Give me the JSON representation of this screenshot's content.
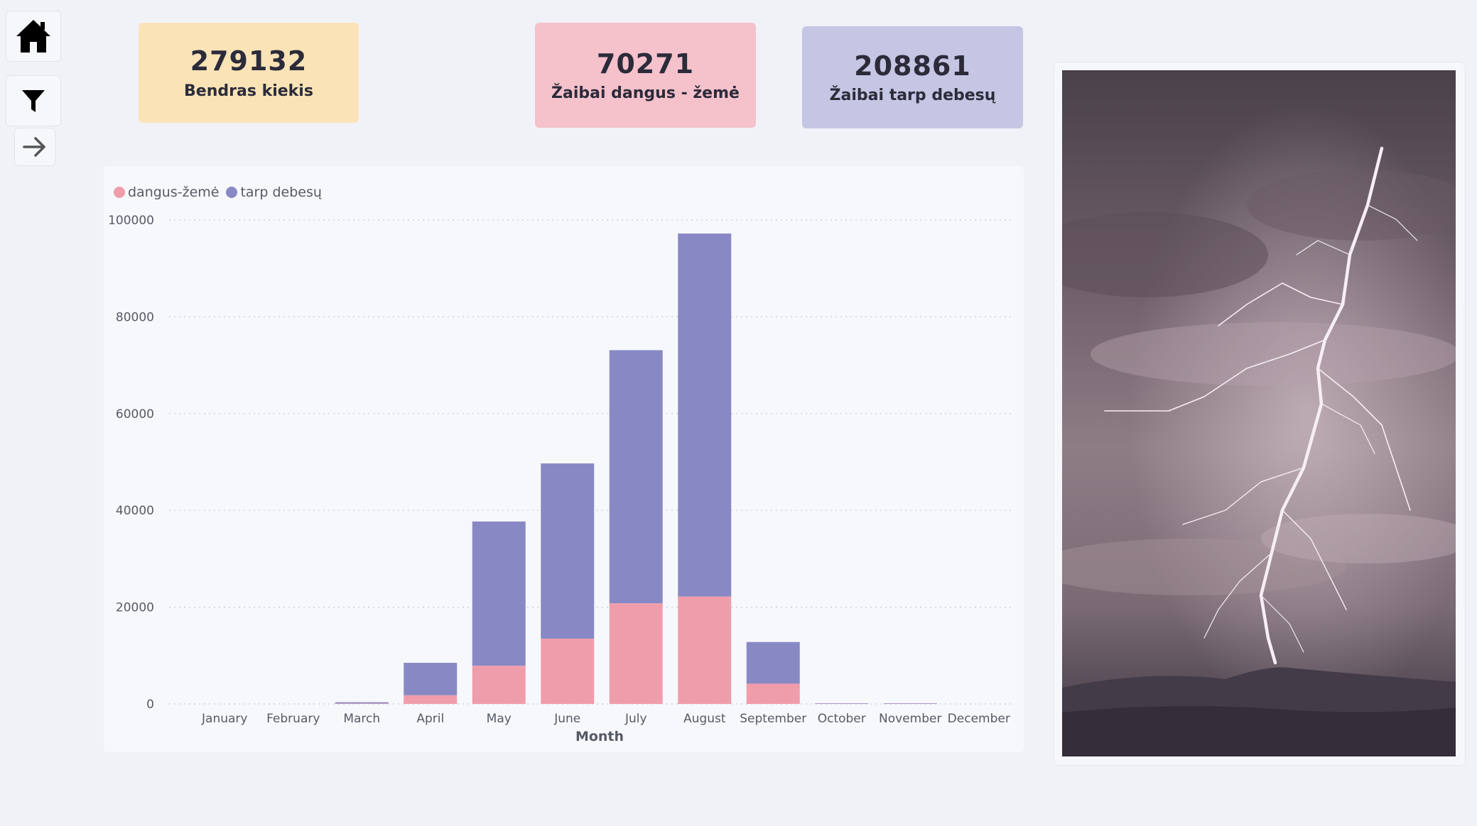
{
  "nav": {
    "home_icon": "home-icon",
    "filter_icon": "filter-icon",
    "arrow_icon": "arrow-right-icon"
  },
  "kpis": [
    {
      "value": "279132",
      "label": "Bendras kiekis",
      "color": "#fae3b6"
    },
    {
      "value": "70271",
      "label": "Žaibai dangus - žemė",
      "color": "#f5c1cb"
    },
    {
      "value": "208861",
      "label": "Žaibai tarp debesų",
      "color": "#c5c6e3"
    }
  ],
  "chart_data": {
    "type": "bar",
    "stacked": true,
    "categories": [
      "January",
      "February",
      "March",
      "April",
      "May",
      "June",
      "July",
      "August",
      "September",
      "October",
      "November",
      "December"
    ],
    "series": [
      {
        "name": "dangus-žemė",
        "color": "#f09dab",
        "values": [
          0,
          0,
          100,
          1800,
          7900,
          13500,
          20800,
          22200,
          4200,
          50,
          50,
          0
        ]
      },
      {
        "name": "tarp debesų",
        "color": "#8889c4",
        "values": [
          0,
          0,
          250,
          6700,
          29800,
          36200,
          52300,
          75000,
          8600,
          100,
          100,
          0
        ]
      }
    ],
    "xlabel": "Month",
    "ylabel": "",
    "ylim": [
      0,
      100000
    ],
    "yticks": [
      "0",
      "20000",
      "40000",
      "60000",
      "80000",
      "100000"
    ],
    "grid": true,
    "legend_position": "top-left"
  },
  "photo": {
    "subject": "lightning-storm"
  }
}
